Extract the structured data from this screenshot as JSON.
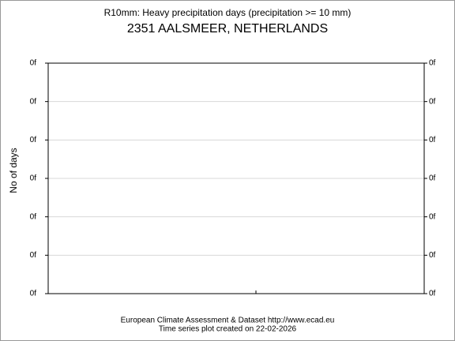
{
  "chart_data": {
    "type": "line",
    "title": "R10mm: Heavy precipitation days (precipitation >= 10 mm)",
    "subtitle": "2351 AALSMEER, NETHERLANDS",
    "y_label": "No of days",
    "ytick_labels": [
      "0f",
      "0f",
      "0f",
      "0f",
      "0f",
      "0f",
      "0f"
    ],
    "grid": true,
    "series": [],
    "footer": [
      "European Climate Assessment & Dataset  http://www.ecad.eu",
      "Time series plot created on 22-02-2026"
    ]
  }
}
